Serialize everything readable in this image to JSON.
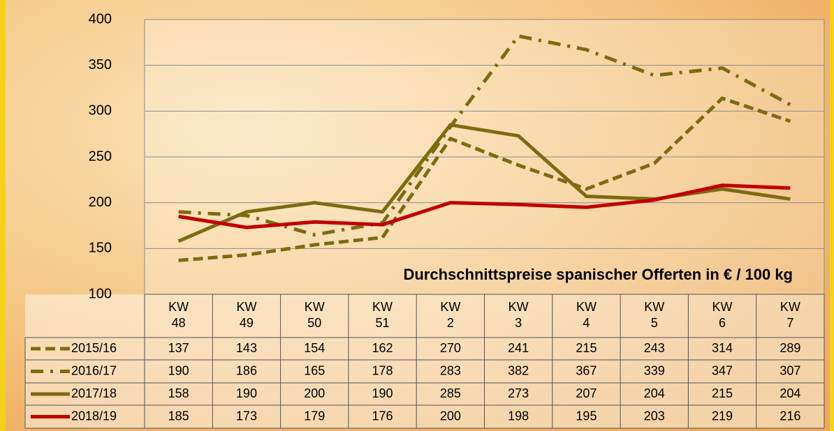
{
  "chart_data": {
    "type": "line",
    "annotation": "Durchschnittspreise spanischer Offerten in € / 100 kg",
    "categories": [
      "KW\n48",
      "KW\n49",
      "KW\n50",
      "KW\n51",
      "KW\n2",
      "KW\n3",
      "KW\n4",
      "KW\n5",
      "KW\n6",
      "KW\n7"
    ],
    "series": [
      {
        "name": "2015/16",
        "color": "#7d6b12",
        "dash": "dashed",
        "values": [
          137,
          143,
          154,
          162,
          270,
          241,
          215,
          243,
          314,
          289
        ]
      },
      {
        "name": "2016/17",
        "color": "#7d6b12",
        "dash": "dashdot",
        "values": [
          190,
          186,
          165,
          178,
          283,
          382,
          367,
          339,
          347,
          307
        ]
      },
      {
        "name": "2017/18",
        "color": "#7d6b12",
        "dash": "solid",
        "values": [
          158,
          190,
          200,
          190,
          285,
          273,
          207,
          204,
          215,
          204
        ]
      },
      {
        "name": "2018/19",
        "color": "#c00000",
        "dash": "solid",
        "values": [
          185,
          173,
          179,
          176,
          200,
          198,
          195,
          203,
          219,
          216
        ]
      }
    ],
    "ylim": [
      100,
      400
    ],
    "yticks": [
      100,
      150,
      200,
      250,
      300,
      350,
      400
    ],
    "grid": true
  }
}
